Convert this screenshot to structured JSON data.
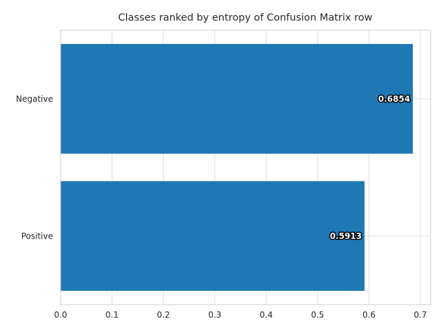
{
  "chart_data": {
    "type": "bar",
    "orientation": "horizontal",
    "title": "Classes ranked by entropy of Confusion Matrix row",
    "xlabel": "",
    "ylabel": "",
    "categories": [
      "Negative",
      "Positive"
    ],
    "values": [
      0.6854,
      0.5913
    ],
    "value_labels": [
      "0.6854",
      "0.5913"
    ],
    "xlim": [
      0,
      0.72
    ],
    "xticks": [
      0.0,
      0.1,
      0.2,
      0.3,
      0.4,
      0.5,
      0.6,
      0.7
    ],
    "xtick_labels": [
      "0.0",
      "0.1",
      "0.2",
      "0.3",
      "0.4",
      "0.5",
      "0.6",
      "0.7"
    ],
    "grid": true,
    "legend": "none",
    "bar_color": "#1f77b4",
    "grid_color": "#dddddd",
    "spine_color": "#cccccc"
  }
}
